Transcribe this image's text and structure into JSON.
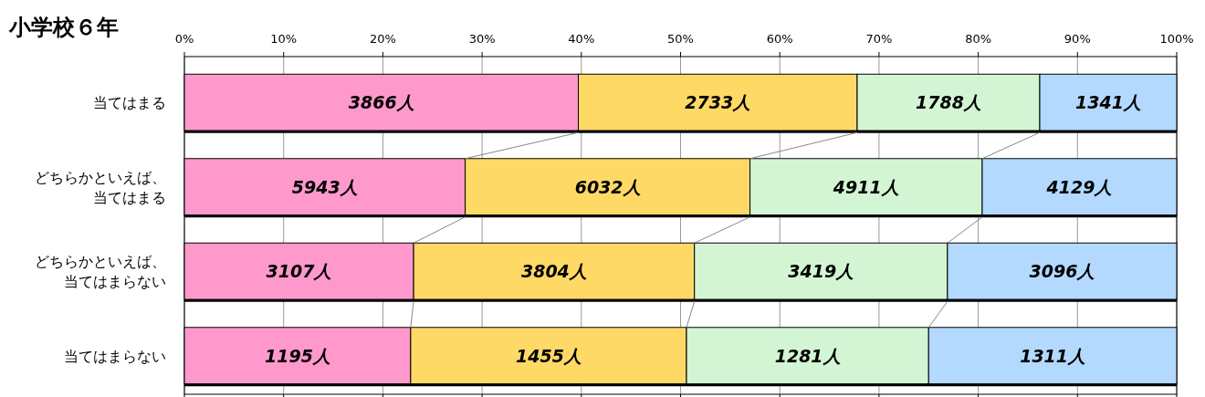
{
  "chart_data": {
    "type": "bar",
    "orientation": "horizontal",
    "stacked": true,
    "title": "小学校６年",
    "categories": [
      "当てはまる",
      "どちらかといえば、当てはまる",
      "どちらかといえば、当てはまらない",
      "当てはまらない"
    ],
    "series": [
      {
        "color": "#ff99cc",
        "values": [
          39.7,
          28.3,
          23.1,
          22.8
        ]
      },
      {
        "color": "#ffd966",
        "values": [
          28.1,
          28.7,
          28.3,
          27.8
        ]
      },
      {
        "color": "#d4f5d4",
        "values": [
          18.4,
          23.4,
          25.5,
          24.4
        ]
      },
      {
        "color": "#b3d9ff",
        "values": [
          13.8,
          19.6,
          23.1,
          25.0
        ]
      }
    ],
    "annotations": [
      "3866人",
      "2733人",
      "1788人",
      "1341人",
      "5943人",
      "6032人",
      "4911人",
      "4129人",
      "3107人",
      "3804人",
      "3419人",
      "3096人",
      "1195人",
      "1455人",
      "1281人",
      "1311人"
    ],
    "xlim": [
      0,
      100
    ],
    "xticks": [
      {
        "value": 0,
        "label": "0%"
      },
      {
        "value": 10,
        "label": "10%"
      },
      {
        "value": 20,
        "label": "20%"
      },
      {
        "value": 30,
        "label": "30%"
      },
      {
        "value": 40,
        "label": "40%"
      },
      {
        "value": 50,
        "label": "50%"
      },
      {
        "value": 60,
        "label": "60%"
      },
      {
        "value": 70,
        "label": "70%"
      },
      {
        "value": 80,
        "label": "80%"
      },
      {
        "value": 90,
        "label": "90%"
      },
      {
        "value": 100,
        "label": "100%"
      }
    ],
    "grid": "x"
  }
}
